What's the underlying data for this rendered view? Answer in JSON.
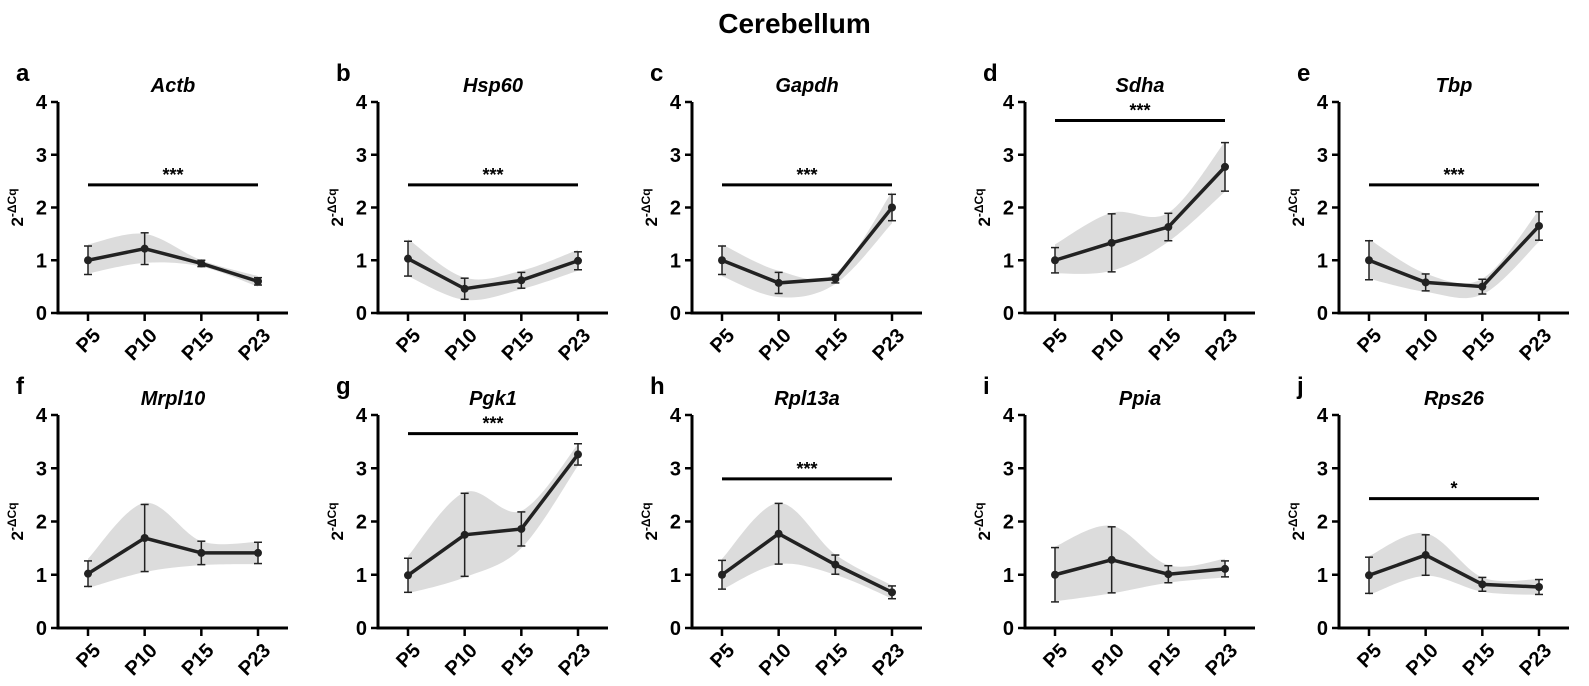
{
  "figure": {
    "title": "Cerebellum",
    "categories": [
      "P5",
      "P10",
      "P15",
      "P23"
    ],
    "ylabel_base": "2",
    "ylabel_exp": "-ΔCq",
    "yticks": [
      "0",
      "1",
      "2",
      "3",
      "4"
    ],
    "ylim": [
      0,
      4
    ]
  },
  "chart_data": [
    {
      "type": "line",
      "panel": "a",
      "title": "Actb",
      "categories": [
        "P5",
        "P10",
        "P15",
        "P23"
      ],
      "values": [
        1.0,
        1.22,
        0.94,
        0.6
      ],
      "errors": [
        0.27,
        0.3,
        0.06,
        0.07
      ],
      "band": [
        [
          0.75,
          1.3
        ],
        [
          0.95,
          1.5
        ],
        [
          0.88,
          1.0
        ],
        [
          0.5,
          0.7
        ]
      ],
      "significance": {
        "label": "***",
        "level": 2.43
      }
    },
    {
      "type": "line",
      "panel": "b",
      "title": "Hsp60",
      "categories": [
        "P5",
        "P10",
        "P15",
        "P23"
      ],
      "values": [
        1.03,
        0.46,
        0.62,
        0.99
      ],
      "errors": [
        0.33,
        0.2,
        0.15,
        0.17
      ],
      "band": [
        [
          0.7,
          1.4
        ],
        [
          0.25,
          0.67
        ],
        [
          0.45,
          0.8
        ],
        [
          0.8,
          1.2
        ]
      ],
      "significance": {
        "label": "***",
        "level": 2.43
      }
    },
    {
      "type": "line",
      "panel": "c",
      "title": "Gapdh",
      "categories": [
        "P5",
        "P10",
        "P15",
        "P23"
      ],
      "values": [
        1.0,
        0.57,
        0.65,
        2.0
      ],
      "errors": [
        0.27,
        0.2,
        0.08,
        0.25
      ],
      "band": [
        [
          0.7,
          1.3
        ],
        [
          0.3,
          0.8
        ],
        [
          0.55,
          0.75
        ],
        [
          1.7,
          2.3
        ]
      ],
      "significance": {
        "label": "***",
        "level": 2.43
      }
    },
    {
      "type": "line",
      "panel": "d",
      "title": "Sdha",
      "categories": [
        "P5",
        "P10",
        "P15",
        "P23"
      ],
      "values": [
        1.0,
        1.33,
        1.63,
        2.77
      ],
      "errors": [
        0.24,
        0.55,
        0.26,
        0.46
      ],
      "band": [
        [
          0.75,
          1.3
        ],
        [
          0.8,
          1.9
        ],
        [
          1.35,
          1.9
        ],
        [
          2.3,
          3.25
        ]
      ],
      "significance": {
        "label": "***",
        "level": 3.65
      }
    },
    {
      "type": "line",
      "panel": "e",
      "title": "Tbp",
      "categories": [
        "P5",
        "P10",
        "P15",
        "P23"
      ],
      "values": [
        1.0,
        0.58,
        0.5,
        1.65
      ],
      "errors": [
        0.37,
        0.16,
        0.14,
        0.27
      ],
      "band": [
        [
          0.65,
          1.4
        ],
        [
          0.4,
          0.75
        ],
        [
          0.35,
          0.65
        ],
        [
          1.35,
          1.95
        ]
      ],
      "significance": {
        "label": "***",
        "level": 2.43
      }
    },
    {
      "type": "line",
      "panel": "f",
      "title": "Mrpl10",
      "categories": [
        "P5",
        "P10",
        "P15",
        "P23"
      ],
      "values": [
        1.02,
        1.69,
        1.41,
        1.41
      ],
      "errors": [
        0.24,
        0.63,
        0.22,
        0.2
      ],
      "band": [
        [
          0.75,
          1.3
        ],
        [
          1.05,
          2.35
        ],
        [
          1.18,
          1.63
        ],
        [
          1.2,
          1.62
        ]
      ],
      "significance": null
    },
    {
      "type": "line",
      "panel": "g",
      "title": "Pgk1",
      "categories": [
        "P5",
        "P10",
        "P15",
        "P23"
      ],
      "values": [
        0.99,
        1.75,
        1.86,
        3.26
      ],
      "errors": [
        0.32,
        0.78,
        0.32,
        0.2
      ],
      "band": [
        [
          0.65,
          1.35
        ],
        [
          0.95,
          2.55
        ],
        [
          1.5,
          2.2
        ],
        [
          3.05,
          3.45
        ]
      ],
      "significance": {
        "label": "***",
        "level": 3.65
      }
    },
    {
      "type": "line",
      "panel": "h",
      "title": "Rpl13a",
      "categories": [
        "P5",
        "P10",
        "P15",
        "P23"
      ],
      "values": [
        1.0,
        1.77,
        1.19,
        0.67
      ],
      "errors": [
        0.27,
        0.57,
        0.18,
        0.12
      ],
      "band": [
        [
          0.72,
          1.3
        ],
        [
          1.2,
          2.35
        ],
        [
          1.0,
          1.38
        ],
        [
          0.55,
          0.8
        ]
      ],
      "significance": {
        "label": "***",
        "level": 2.8
      }
    },
    {
      "type": "line",
      "panel": "i",
      "title": "Ppia",
      "categories": [
        "P5",
        "P10",
        "P15",
        "P23"
      ],
      "values": [
        1.0,
        1.28,
        1.01,
        1.11
      ],
      "errors": [
        0.51,
        0.62,
        0.16,
        0.15
      ],
      "band": [
        [
          0.5,
          1.53
        ],
        [
          0.65,
          1.92
        ],
        [
          0.85,
          1.18
        ],
        [
          0.95,
          1.3
        ]
      ],
      "significance": null
    },
    {
      "type": "line",
      "panel": "j",
      "title": "Rps26",
      "categories": [
        "P5",
        "P10",
        "P15",
        "P23"
      ],
      "values": [
        0.99,
        1.37,
        0.82,
        0.77
      ],
      "errors": [
        0.34,
        0.38,
        0.13,
        0.14
      ],
      "band": [
        [
          0.62,
          1.35
        ],
        [
          0.98,
          1.78
        ],
        [
          0.68,
          0.95
        ],
        [
          0.62,
          0.92
        ]
      ],
      "significance": {
        "label": "*",
        "level": 2.43
      }
    }
  ],
  "colors": {
    "line": "#222222",
    "band": "#dcdcdc",
    "axis": "#000000"
  }
}
